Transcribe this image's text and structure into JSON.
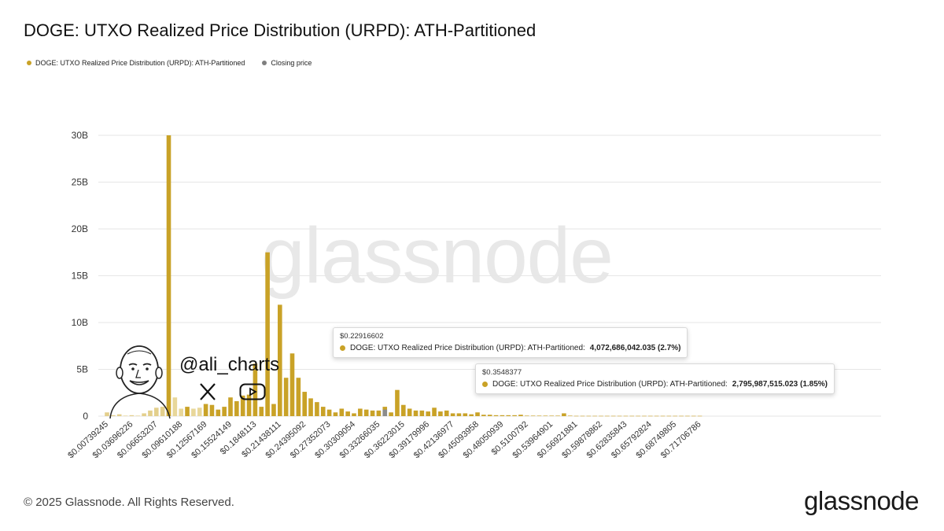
{
  "title": "DOGE: UTXO Realized Price Distribution (URPD): ATH-Partitioned",
  "legend": [
    {
      "label": "DOGE: UTXO Realized Price Distribution (URPD): ATH-Partitioned",
      "color": "#c9a227"
    },
    {
      "label": "Closing price",
      "color": "#7f7f7f"
    }
  ],
  "watermark": "glassnode",
  "footer": "© 2025 Glassnode. All Rights Reserved.",
  "brand": "glassnode",
  "overlay": {
    "handle": "@ali_charts",
    "icons": [
      "avatar-icon",
      "x-logo-icon",
      "youtube-icon"
    ]
  },
  "tooltips": [
    {
      "price": "$0.22916602",
      "series": "DOGE: UTXO Realized Price Distribution (URPD): ATH-Partitioned:",
      "value": "4,072,686,042.035 (2.7%)"
    },
    {
      "price": "$0.3548377",
      "series": "DOGE: UTXO Realized Price Distribution (URPD): ATH-Partitioned:",
      "value": "2,795,987,515.023 (1.85%)"
    }
  ],
  "chart_data": {
    "type": "bar",
    "title": "DOGE: UTXO Realized Price Distribution (URPD): ATH-Partitioned",
    "ylim": [
      0,
      30
    ],
    "y_unit": "B",
    "y_ticks": [
      "0",
      "5B",
      "10B",
      "15B",
      "20B",
      "25B",
      "30B"
    ],
    "x_tick_labels": [
      "$0.00739245",
      "$0.03696226",
      "$0.06653207",
      "$0.09610188",
      "$0.12567169",
      "$0.15524149",
      "$0.1848113",
      "$0.21438111",
      "$0.24395092",
      "$0.27352073",
      "$0.30309054",
      "$0.33266035",
      "$0.36223015",
      "$0.39179996",
      "$0.42136977",
      "$0.45093958",
      "$0.48050939",
      "$0.5100792",
      "$0.53964901",
      "$0.56921881",
      "$0.59878862",
      "$0.62835843",
      "$0.65792824",
      "$0.68749805",
      "$0.71706786"
    ],
    "bins_per_tick": 4,
    "grid": true,
    "closing_price_bin": 45,
    "highlight_bins": [
      23,
      58
    ],
    "series": [
      {
        "name": "DOGE: UTXO Realized Price Distribution (URPD): ATH-Partitioned",
        "color": "#c9a227",
        "values": [
          0.4,
          0.1,
          0.2,
          0.05,
          0.1,
          0.05,
          0.3,
          0.6,
          0.9,
          1.0,
          30.0,
          2.0,
          0.8,
          1.0,
          0.8,
          0.9,
          1.3,
          1.2,
          0.7,
          1.0,
          2.0,
          1.6,
          2.2,
          2.3,
          5.6,
          1.0,
          17.5,
          1.3,
          11.9,
          4.1,
          6.7,
          4.1,
          2.6,
          1.9,
          1.5,
          1.0,
          0.7,
          0.4,
          0.8,
          0.5,
          0.3,
          0.8,
          0.7,
          0.6,
          0.6,
          1.0,
          0.4,
          2.8,
          1.2,
          0.8,
          0.6,
          0.6,
          0.5,
          0.9,
          0.5,
          0.6,
          0.3,
          0.3,
          0.3,
          0.2,
          0.4,
          0.15,
          0.15,
          0.1,
          0.1,
          0.1,
          0.1,
          0.15,
          0.05,
          0.05,
          0.05,
          0.05,
          0.05,
          0.05,
          0.3,
          0.05,
          0.03,
          0.03,
          0.03,
          0.03,
          0.03,
          0.03,
          0.03,
          0.03,
          0.03,
          0.03,
          0.03,
          0.03,
          0.03,
          0.03,
          0.03,
          0.03,
          0.03,
          0.03,
          0.03,
          0.03,
          0.03
        ]
      }
    ],
    "closing_price_value": 0.7
  }
}
